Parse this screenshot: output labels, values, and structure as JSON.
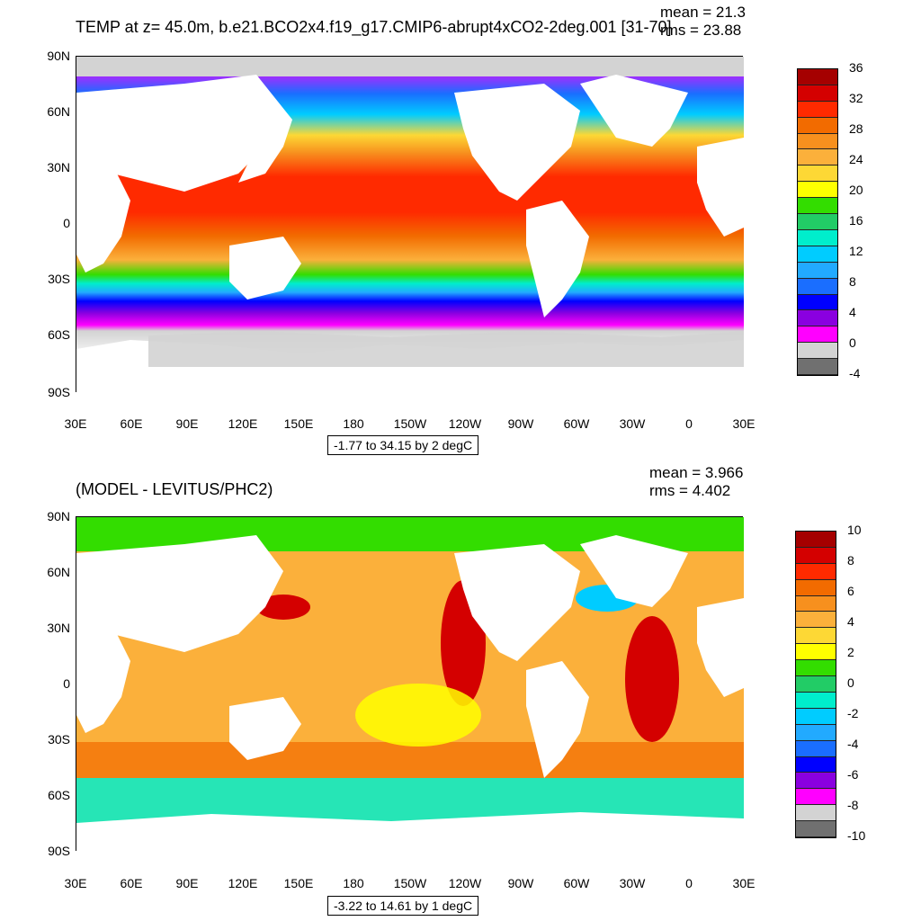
{
  "panel1": {
    "title": "TEMP at z=  45.0m, b.e21.BCO2x4.f19_g17.CMIP6-abrupt4xCO2-2deg.001 [31-70]",
    "mean": "mean = 21.3",
    "rms": "rms = 23.88",
    "range": "-1.77 to 34.15 by 2 degC",
    "colorbar_labels": [
      "36",
      "32",
      "28",
      "24",
      "20",
      "16",
      "12",
      "8",
      "4",
      "0",
      "-4"
    ],
    "colorbar_colors": [
      "#a50000",
      "#d40000",
      "#ff2a00",
      "#f26b00",
      "#f7901e",
      "#fbb03b",
      "#fdd835",
      "#ffff00",
      "#33dd00",
      "#22cc66",
      "#00eecc",
      "#00ccff",
      "#22aaff",
      "#1a6eff",
      "#0000ff",
      "#8a00e0",
      "#ff00ff",
      "#d3d3d3",
      "#707070"
    ]
  },
  "panel2": {
    "title": "(MODEL - LEVITUS/PHC2)",
    "mean": "mean = 3.966",
    "rms": "rms = 4.402",
    "range": "-3.22 to 14.61 by 1 degC",
    "colorbar_labels": [
      "10",
      "8",
      "6",
      "4",
      "2",
      "0",
      "-2",
      "-4",
      "-6",
      "-8",
      "-10"
    ],
    "colorbar_colors": [
      "#a50000",
      "#d40000",
      "#ff2a00",
      "#f26b00",
      "#f7901e",
      "#fbb03b",
      "#fdd835",
      "#ffff00",
      "#33dd00",
      "#22cc66",
      "#00eecc",
      "#00ccff",
      "#22aaff",
      "#1a6eff",
      "#0000ff",
      "#8a00e0",
      "#ff00ff",
      "#d3d3d3",
      "#707070"
    ]
  },
  "axes": {
    "y_labels": [
      "90N",
      "60N",
      "30N",
      "0",
      "30S",
      "60S",
      "90S"
    ],
    "x_labels": [
      "30E",
      "60E",
      "90E",
      "120E",
      "150E",
      "180",
      "150W",
      "120W",
      "90W",
      "60W",
      "30W",
      "0",
      "30E"
    ]
  }
}
